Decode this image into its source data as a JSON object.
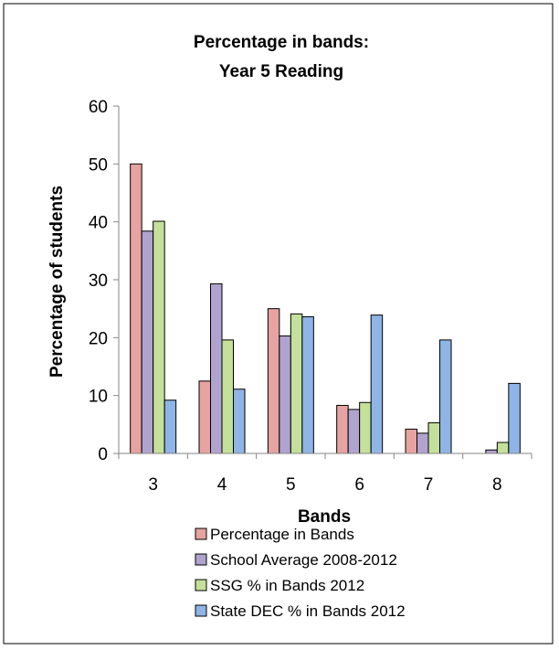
{
  "chart_data": {
    "type": "bar",
    "title_lines": [
      "Percentage in bands:",
      "Year 5 Reading"
    ],
    "xlabel": "Bands",
    "ylabel": "Percentage of students",
    "ylim": [
      0,
      60
    ],
    "yticks": [
      0,
      10,
      20,
      30,
      40,
      50,
      60
    ],
    "grid": false,
    "legend_position": "bottom",
    "categories": [
      "3",
      "4",
      "5",
      "6",
      "7",
      "8"
    ],
    "series": [
      {
        "name": "Percentage in Bands",
        "color": "#e6a3a1",
        "values": [
          50,
          12.5,
          25,
          8.3,
          4.2,
          0
        ]
      },
      {
        "name": "School Average 2008-2012",
        "color": "#b1a3cf",
        "values": [
          38.4,
          29.3,
          20.3,
          7.6,
          3.5,
          0.6
        ]
      },
      {
        "name": "SSG % in Bands 2012",
        "color": "#c4e09a",
        "values": [
          40.1,
          19.6,
          24.1,
          8.8,
          5.3,
          1.9
        ]
      },
      {
        "name": "State DEC % in Bands 2012",
        "color": "#8fb4e6",
        "values": [
          9.2,
          11.1,
          23.6,
          23.9,
          19.6,
          12.1
        ]
      }
    ]
  }
}
